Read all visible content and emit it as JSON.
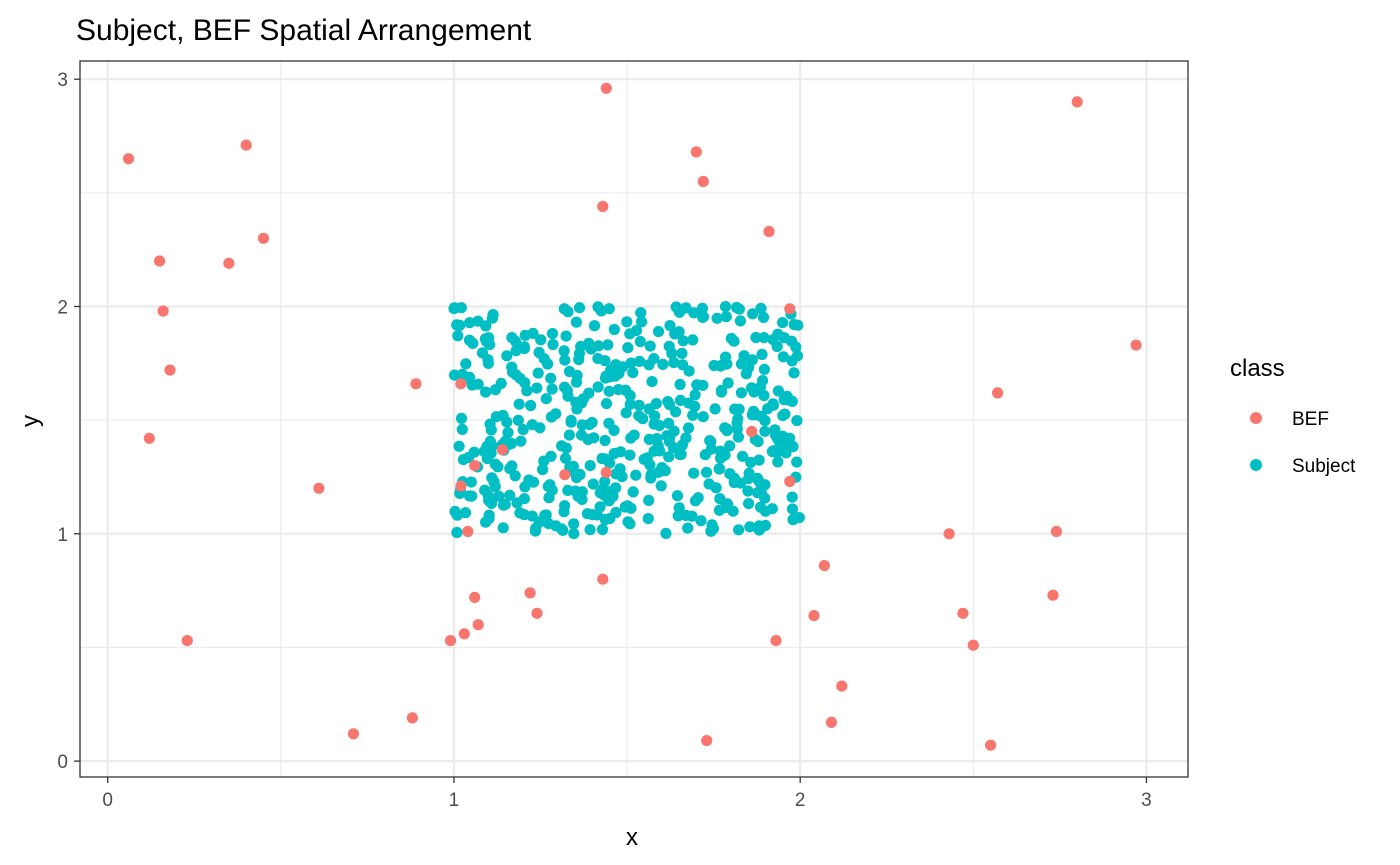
{
  "chart_data": {
    "type": "scatter",
    "title": "Subject, BEF Spatial Arrangement",
    "xlabel": "x",
    "ylabel": "y",
    "xlim": [
      -0.08,
      3.12
    ],
    "ylim": [
      -0.07,
      3.08
    ],
    "x_ticks": [
      0,
      1,
      2,
      3
    ],
    "y_ticks": [
      0,
      1,
      2,
      3
    ],
    "x_tick_labels": [
      "0",
      "1",
      "2",
      "3"
    ],
    "y_tick_labels": [
      "0",
      "1",
      "2",
      "3"
    ],
    "grid": true,
    "legend": {
      "title": "class",
      "position": "right"
    },
    "series": [
      {
        "name": "BEF",
        "color": "#F8766D",
        "points": [
          [
            0.06,
            2.65
          ],
          [
            0.4,
            2.71
          ],
          [
            0.45,
            2.3
          ],
          [
            0.15,
            2.2
          ],
          [
            0.35,
            2.19
          ],
          [
            0.16,
            1.98
          ],
          [
            0.18,
            1.72
          ],
          [
            0.12,
            1.42
          ],
          [
            0.61,
            1.2
          ],
          [
            0.23,
            0.53
          ],
          [
            0.71,
            0.12
          ],
          [
            0.88,
            0.19
          ],
          [
            0.89,
            1.66
          ],
          [
            1.02,
            1.66
          ],
          [
            1.02,
            1.21
          ],
          [
            1.06,
            1.3
          ],
          [
            1.04,
            1.01
          ],
          [
            1.14,
            1.37
          ],
          [
            1.06,
            0.72
          ],
          [
            1.07,
            0.6
          ],
          [
            1.03,
            0.56
          ],
          [
            0.99,
            0.53
          ],
          [
            1.22,
            0.74
          ],
          [
            1.24,
            0.65
          ],
          [
            1.32,
            1.26
          ],
          [
            1.44,
            1.27
          ],
          [
            1.43,
            0.8
          ],
          [
            1.43,
            2.44
          ],
          [
            1.44,
            2.96
          ],
          [
            1.7,
            2.68
          ],
          [
            1.72,
            2.55
          ],
          [
            1.73,
            0.09
          ],
          [
            1.86,
            1.45
          ],
          [
            1.91,
            2.33
          ],
          [
            1.97,
            1.99
          ],
          [
            1.97,
            1.23
          ],
          [
            1.93,
            0.53
          ],
          [
            2.04,
            0.64
          ],
          [
            2.07,
            0.86
          ],
          [
            2.09,
            0.17
          ],
          [
            2.12,
            0.33
          ],
          [
            2.43,
            1.0
          ],
          [
            2.47,
            0.65
          ],
          [
            2.5,
            0.51
          ],
          [
            2.55,
            0.07
          ],
          [
            2.57,
            1.62
          ],
          [
            2.73,
            0.73
          ],
          [
            2.74,
            1.01
          ],
          [
            2.8,
            2.9
          ],
          [
            2.97,
            1.83
          ]
        ]
      },
      {
        "name": "Subject",
        "color": "#00BFC4",
        "generation": {
          "x_range": [
            1,
            2
          ],
          "y_range": [
            1,
            2
          ],
          "count": 500
        }
      }
    ]
  }
}
